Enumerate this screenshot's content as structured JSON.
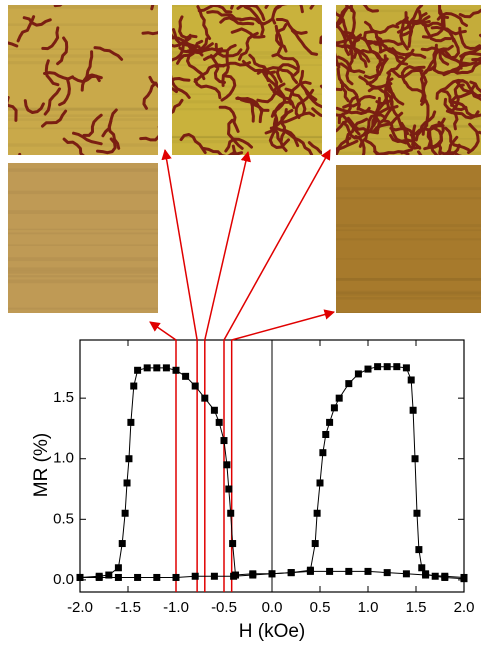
{
  "chart_data": {
    "type": "line",
    "x_label": "H (kOe)",
    "y_label": "MR (%)",
    "xlim": [
      -2.0,
      2.0
    ],
    "xticks": [
      {
        "value": -2.0,
        "label": "-2.0"
      },
      {
        "value": -1.5,
        "label": "-1.5"
      },
      {
        "value": -1.0,
        "label": "-1.0"
      },
      {
        "value": -0.5,
        "label": "-0.5"
      },
      {
        "value": 0.0,
        "label": "0.0"
      },
      {
        "value": 0.5,
        "label": "0.5"
      },
      {
        "value": 1.0,
        "label": "1.0"
      },
      {
        "value": 1.5,
        "label": "1.5"
      },
      {
        "value": 2.0,
        "label": "2.0"
      }
    ],
    "ylim": [
      -0.1,
      1.98
    ],
    "yticks": [
      {
        "value": 0.0,
        "label": "0.0"
      },
      {
        "value": 0.5,
        "label": "0.5"
      },
      {
        "value": 1.0,
        "label": "1.0"
      },
      {
        "value": 1.5,
        "label": "1.5"
      }
    ],
    "zero_line": true,
    "marker_lines_x": [
      -1.0,
      -0.78,
      -0.7,
      -0.5,
      -0.42
    ],
    "marker_line_color": "#e00000",
    "series": [
      {
        "color": "#000000",
        "x": [
          -2.0,
          -1.8,
          -1.6,
          -1.4,
          -1.2,
          -1.0,
          -0.8,
          -0.6,
          -0.4,
          -0.2,
          0.0,
          0.2,
          0.4,
          0.45,
          0.47,
          0.5,
          0.53,
          0.56,
          0.6,
          0.65,
          0.7,
          0.8,
          0.9,
          1.0,
          1.1,
          1.2,
          1.3,
          1.4,
          1.45,
          1.47,
          1.49,
          1.51,
          1.53,
          1.56,
          1.6,
          1.7,
          1.8,
          2.0
        ],
        "values": [
          0.02,
          0.02,
          0.02,
          0.02,
          0.02,
          0.02,
          0.03,
          0.03,
          0.03,
          0.04,
          0.05,
          0.06,
          0.08,
          0.3,
          0.55,
          0.8,
          1.05,
          1.2,
          1.3,
          1.42,
          1.5,
          1.62,
          1.7,
          1.74,
          1.76,
          1.76,
          1.76,
          1.75,
          1.65,
          1.4,
          1.0,
          0.55,
          0.25,
          0.1,
          0.05,
          0.03,
          0.02,
          0.01
        ]
      },
      {
        "color": "#000000",
        "x": [
          2.0,
          1.8,
          1.6,
          1.4,
          1.2,
          1.0,
          0.8,
          0.6,
          0.4,
          0.2,
          0.0,
          -0.2,
          -0.38,
          -0.41,
          -0.43,
          -0.45,
          -0.47,
          -0.5,
          -0.55,
          -0.6,
          -0.7,
          -0.8,
          -0.9,
          -1.0,
          -1.1,
          -1.2,
          -1.3,
          -1.4,
          -1.44,
          -1.47,
          -1.49,
          -1.51,
          -1.53,
          -1.56,
          -1.6,
          -1.7,
          -1.8,
          -2.0
        ],
        "values": [
          0.02,
          0.03,
          0.04,
          0.05,
          0.06,
          0.07,
          0.07,
          0.07,
          0.07,
          0.06,
          0.05,
          0.05,
          0.04,
          0.3,
          0.55,
          0.75,
          0.95,
          1.15,
          1.3,
          1.4,
          1.5,
          1.6,
          1.68,
          1.73,
          1.75,
          1.75,
          1.75,
          1.73,
          1.6,
          1.3,
          1.0,
          0.8,
          0.55,
          0.3,
          0.1,
          0.04,
          0.03,
          0.02
        ]
      }
    ]
  }
}
